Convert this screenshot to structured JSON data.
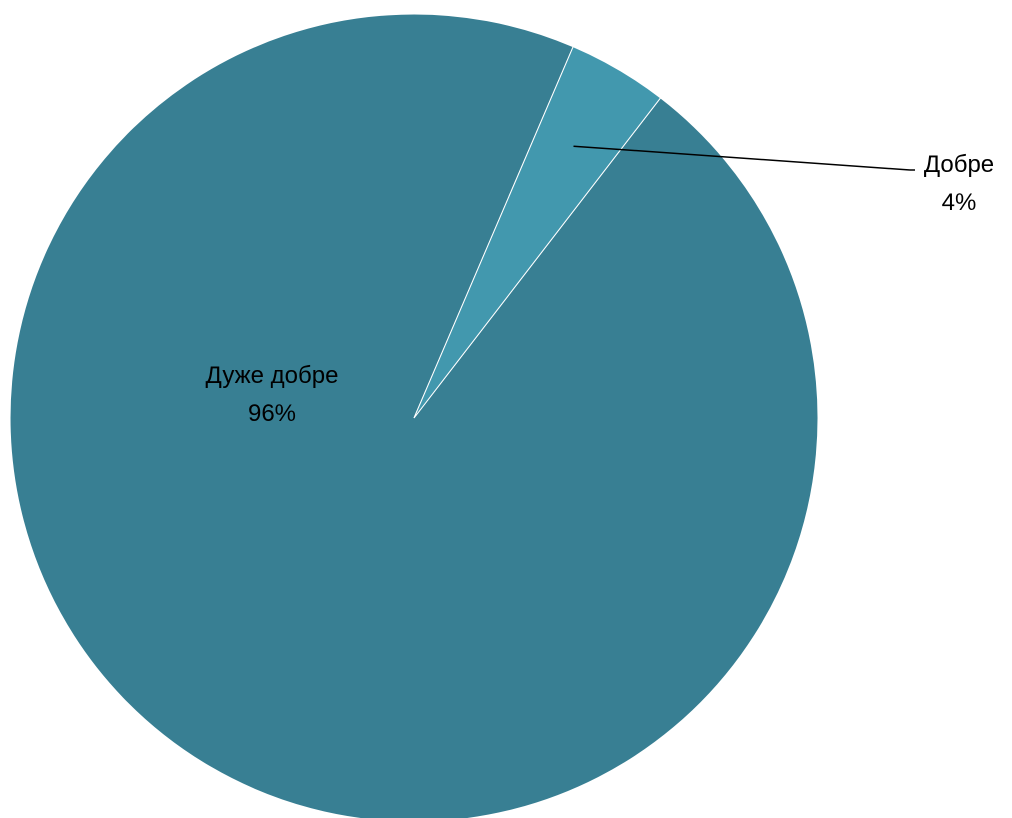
{
  "chart_data": {
    "type": "pie",
    "title": "",
    "series": [
      {
        "values": [
          96,
          4
        ],
        "categories": [
          "Дуже добре",
          "Добре"
        ]
      }
    ],
    "slices": [
      {
        "name": "Дуже добре",
        "value": 96,
        "label": "96%",
        "color": "#387f93"
      },
      {
        "name": "Добре",
        "value": 4,
        "label": "4%",
        "color": "#4298ae"
      }
    ],
    "legend": "none",
    "data_labels": "category-and-percent"
  }
}
